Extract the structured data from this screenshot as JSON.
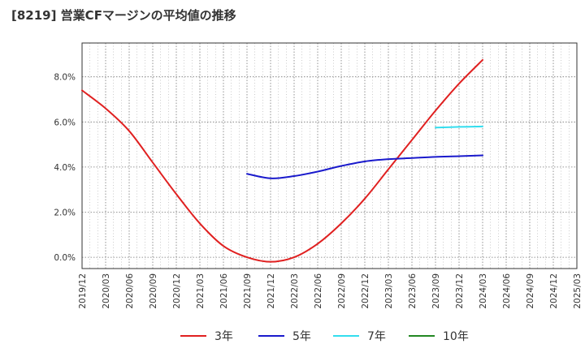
{
  "chart_data": {
    "type": "line",
    "title": "[8219]  営業CFマージンの平均値の推移",
    "xlabel": "",
    "ylabel": "",
    "ylim": [
      -0.5,
      9.5
    ],
    "yticks": [
      0,
      2,
      4,
      6,
      8
    ],
    "ytick_labels": [
      "0.0%",
      "2.0%",
      "4.0%",
      "6.0%",
      "8.0%"
    ],
    "x_tick_labels": [
      "2019/12",
      "2020/03",
      "2020/06",
      "2020/09",
      "2020/12",
      "2021/03",
      "2021/06",
      "2021/09",
      "2021/12",
      "2022/03",
      "2022/06",
      "2022/09",
      "2022/12",
      "2023/03",
      "2023/06",
      "2023/09",
      "2023/12",
      "2024/03",
      "2024/06",
      "2024/09",
      "2024/12",
      "2025/03"
    ],
    "grid": true,
    "legend_position": "bottom",
    "series": [
      {
        "name": "3年",
        "color": "#e02020",
        "points": [
          [
            "2019/12",
            7.4
          ],
          [
            "2020/03",
            6.6
          ],
          [
            "2020/06",
            5.6
          ],
          [
            "2020/09",
            4.2
          ],
          [
            "2020/12",
            2.8
          ],
          [
            "2021/03",
            1.5
          ],
          [
            "2021/06",
            0.5
          ],
          [
            "2021/09",
            0.0
          ],
          [
            "2021/12",
            -0.2
          ],
          [
            "2022/03",
            0.0
          ],
          [
            "2022/06",
            0.6
          ],
          [
            "2022/09",
            1.5
          ],
          [
            "2022/12",
            2.6
          ],
          [
            "2023/03",
            3.9
          ],
          [
            "2023/06",
            5.2
          ],
          [
            "2023/09",
            6.5
          ],
          [
            "2023/12",
            7.7
          ],
          [
            "2024/03",
            8.75
          ]
        ]
      },
      {
        "name": "5年",
        "color": "#1a1acc",
        "points": [
          [
            "2021/09",
            3.7
          ],
          [
            "2021/12",
            3.5
          ],
          [
            "2022/03",
            3.6
          ],
          [
            "2022/06",
            3.8
          ],
          [
            "2022/09",
            4.05
          ],
          [
            "2022/12",
            4.25
          ],
          [
            "2023/03",
            4.35
          ],
          [
            "2023/06",
            4.4
          ],
          [
            "2023/09",
            4.45
          ],
          [
            "2023/12",
            4.48
          ],
          [
            "2024/03",
            4.52
          ]
        ]
      },
      {
        "name": "7年",
        "color": "#33ddee",
        "points": [
          [
            "2023/09",
            5.75
          ],
          [
            "2023/12",
            5.78
          ],
          [
            "2024/03",
            5.8
          ]
        ]
      },
      {
        "name": "10年",
        "color": "#228822",
        "points": []
      }
    ]
  }
}
